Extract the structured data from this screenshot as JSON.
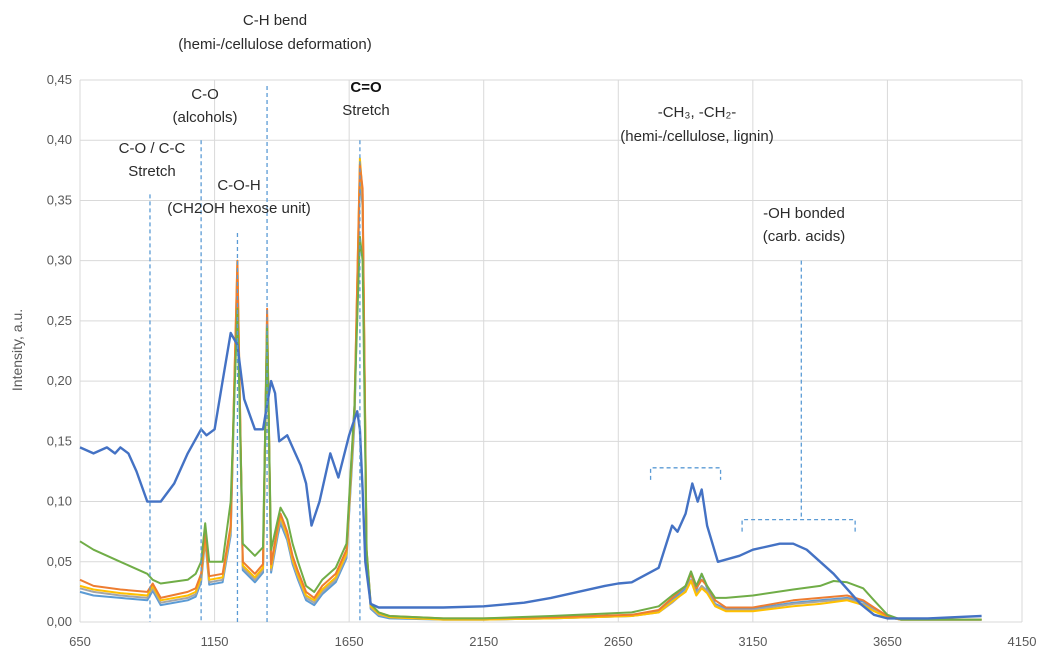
{
  "chart_data": {
    "type": "line",
    "title": "",
    "xlabel": "",
    "ylabel": "Intensity, a.u.",
    "xlim": [
      650,
      4150
    ],
    "ylim": [
      0,
      0.45
    ],
    "x_ticks": [
      650,
      1150,
      1650,
      2150,
      2650,
      3150,
      3650,
      4150
    ],
    "x_tick_labels": [
      "650",
      "1150",
      "1650",
      "2150",
      "2650",
      "3150",
      "3650",
      "4150"
    ],
    "y_ticks": [
      0,
      0.05,
      0.1,
      0.15,
      0.2,
      0.25,
      0.3,
      0.35,
      0.4,
      0.45
    ],
    "y_tick_labels": [
      "0,00",
      "0,05",
      "0,10",
      "0,15",
      "0,20",
      "0,25",
      "0,30",
      "0,35",
      "0,40",
      "0,45"
    ],
    "grid": true,
    "legend": "none",
    "series": [
      {
        "color": "#4472c4",
        "x": [
          650,
          700,
          750,
          780,
          800,
          830,
          860,
          900,
          950,
          1000,
          1050,
          1100,
          1120,
          1150,
          1180,
          1210,
          1235,
          1260,
          1300,
          1330,
          1360,
          1375,
          1390,
          1420,
          1450,
          1470,
          1490,
          1510,
          1540,
          1580,
          1610,
          1650,
          1680,
          1690,
          1700,
          1710,
          1730,
          1760,
          1800,
          1900,
          2000,
          2150,
          2300,
          2400,
          2500,
          2600,
          2650,
          2700,
          2800,
          2850,
          2870,
          2900,
          2925,
          2945,
          2960,
          2980,
          3020,
          3100,
          3150,
          3250,
          3300,
          3350,
          3450,
          3550,
          3600,
          3650,
          3700,
          3800,
          3900,
          4000
        ],
        "y": [
          0.145,
          0.14,
          0.145,
          0.14,
          0.145,
          0.14,
          0.125,
          0.1,
          0.1,
          0.115,
          0.14,
          0.16,
          0.155,
          0.16,
          0.2,
          0.24,
          0.23,
          0.185,
          0.16,
          0.16,
          0.2,
          0.19,
          0.15,
          0.155,
          0.14,
          0.13,
          0.115,
          0.08,
          0.1,
          0.14,
          0.12,
          0.155,
          0.175,
          0.16,
          0.11,
          0.05,
          0.015,
          0.012,
          0.012,
          0.012,
          0.012,
          0.013,
          0.016,
          0.02,
          0.025,
          0.03,
          0.032,
          0.033,
          0.045,
          0.08,
          0.075,
          0.09,
          0.115,
          0.1,
          0.11,
          0.08,
          0.05,
          0.055,
          0.06,
          0.065,
          0.065,
          0.06,
          0.04,
          0.015,
          0.006,
          0.003,
          0.003,
          0.003,
          0.004,
          0.005
        ]
      },
      {
        "color": "#ed7d31",
        "x": [
          650,
          700,
          800,
          900,
          920,
          950,
          1050,
          1080,
          1100,
          1115,
          1130,
          1180,
          1210,
          1235,
          1255,
          1300,
          1330,
          1345,
          1360,
          1385,
          1395,
          1420,
          1440,
          1460,
          1490,
          1520,
          1550,
          1600,
          1640,
          1670,
          1690,
          1700,
          1715,
          1730,
          1760,
          1800,
          2000,
          2150,
          2400,
          2700,
          2800,
          2850,
          2900,
          2920,
          2940,
          2960,
          2980,
          3010,
          3050,
          3150,
          3300,
          3400,
          3500,
          3560,
          3600,
          3650,
          3700,
          3800,
          4000
        ],
        "y": [
          0.035,
          0.03,
          0.027,
          0.025,
          0.032,
          0.02,
          0.025,
          0.028,
          0.04,
          0.075,
          0.038,
          0.04,
          0.08,
          0.3,
          0.05,
          0.04,
          0.048,
          0.26,
          0.048,
          0.08,
          0.09,
          0.075,
          0.055,
          0.042,
          0.025,
          0.02,
          0.03,
          0.04,
          0.06,
          0.18,
          0.38,
          0.36,
          0.06,
          0.015,
          0.008,
          0.005,
          0.003,
          0.003,
          0.004,
          0.006,
          0.01,
          0.02,
          0.03,
          0.04,
          0.028,
          0.035,
          0.03,
          0.018,
          0.012,
          0.012,
          0.018,
          0.02,
          0.022,
          0.018,
          0.012,
          0.005,
          0.002,
          0.002,
          0.002
        ]
      },
      {
        "color": "#a5a5a5",
        "x": [
          650,
          700,
          800,
          900,
          920,
          950,
          1050,
          1080,
          1100,
          1115,
          1130,
          1180,
          1210,
          1235,
          1255,
          1300,
          1330,
          1345,
          1360,
          1385,
          1395,
          1420,
          1440,
          1460,
          1490,
          1520,
          1550,
          1600,
          1640,
          1670,
          1690,
          1700,
          1715,
          1730,
          1760,
          1800,
          2000,
          2150,
          2400,
          2700,
          2800,
          2850,
          2900,
          2920,
          2940,
          2960,
          2980,
          3010,
          3050,
          3150,
          3300,
          3400,
          3500,
          3560,
          3600,
          3650,
          3700,
          3800,
          4000
        ],
        "y": [
          0.028,
          0.025,
          0.022,
          0.02,
          0.028,
          0.016,
          0.02,
          0.023,
          0.035,
          0.07,
          0.033,
          0.035,
          0.075,
          0.29,
          0.045,
          0.035,
          0.043,
          0.25,
          0.043,
          0.075,
          0.085,
          0.07,
          0.05,
          0.037,
          0.02,
          0.016,
          0.025,
          0.035,
          0.055,
          0.17,
          0.375,
          0.35,
          0.055,
          0.012,
          0.006,
          0.004,
          0.002,
          0.002,
          0.003,
          0.005,
          0.008,
          0.016,
          0.026,
          0.035,
          0.024,
          0.03,
          0.026,
          0.014,
          0.01,
          0.01,
          0.015,
          0.017,
          0.019,
          0.015,
          0.01,
          0.004,
          0.002,
          0.002,
          0.002
        ]
      },
      {
        "color": "#ffc000",
        "x": [
          650,
          700,
          800,
          900,
          920,
          950,
          1050,
          1080,
          1100,
          1115,
          1130,
          1180,
          1210,
          1235,
          1255,
          1300,
          1330,
          1345,
          1360,
          1385,
          1395,
          1420,
          1440,
          1460,
          1490,
          1520,
          1550,
          1600,
          1640,
          1670,
          1690,
          1700,
          1715,
          1730,
          1760,
          1800,
          2000,
          2150,
          2400,
          2700,
          2800,
          2850,
          2900,
          2920,
          2940,
          2960,
          2980,
          3010,
          3050,
          3150,
          3300,
          3400,
          3500,
          3560,
          3600,
          3650,
          3700,
          3800,
          4000
        ],
        "y": [
          0.03,
          0.027,
          0.024,
          0.022,
          0.03,
          0.018,
          0.022,
          0.025,
          0.037,
          0.072,
          0.035,
          0.037,
          0.078,
          0.3,
          0.047,
          0.037,
          0.045,
          0.255,
          0.045,
          0.078,
          0.088,
          0.072,
          0.052,
          0.039,
          0.022,
          0.018,
          0.027,
          0.037,
          0.057,
          0.175,
          0.385,
          0.355,
          0.058,
          0.013,
          0.007,
          0.004,
          0.002,
          0.002,
          0.003,
          0.005,
          0.008,
          0.017,
          0.025,
          0.034,
          0.022,
          0.028,
          0.024,
          0.013,
          0.009,
          0.009,
          0.013,
          0.015,
          0.018,
          0.014,
          0.009,
          0.004,
          0.002,
          0.002,
          0.002
        ]
      },
      {
        "color": "#5b9bd5",
        "x": [
          650,
          700,
          800,
          900,
          920,
          950,
          1050,
          1080,
          1100,
          1115,
          1130,
          1180,
          1210,
          1235,
          1255,
          1300,
          1330,
          1345,
          1360,
          1385,
          1395,
          1420,
          1440,
          1460,
          1490,
          1520,
          1550,
          1600,
          1640,
          1670,
          1690,
          1700,
          1715,
          1730,
          1760,
          1800,
          2000,
          2150,
          2400,
          2700,
          2800,
          2850,
          2900,
          2920,
          2940,
          2960,
          2980,
          3010,
          3050,
          3150,
          3300,
          3400,
          3500,
          3560,
          3600,
          3650,
          3700,
          3800,
          4000
        ],
        "y": [
          0.025,
          0.022,
          0.02,
          0.018,
          0.026,
          0.014,
          0.018,
          0.021,
          0.033,
          0.068,
          0.031,
          0.033,
          0.072,
          0.285,
          0.043,
          0.033,
          0.041,
          0.245,
          0.041,
          0.072,
          0.082,
          0.068,
          0.048,
          0.035,
          0.018,
          0.014,
          0.023,
          0.033,
          0.053,
          0.165,
          0.37,
          0.345,
          0.052,
          0.011,
          0.005,
          0.003,
          0.002,
          0.002,
          0.003,
          0.005,
          0.009,
          0.018,
          0.028,
          0.04,
          0.026,
          0.04,
          0.028,
          0.015,
          0.011,
          0.011,
          0.016,
          0.018,
          0.02,
          0.017,
          0.011,
          0.004,
          0.002,
          0.002,
          0.002
        ]
      },
      {
        "color": "#70ad47",
        "x": [
          650,
          700,
          800,
          900,
          920,
          950,
          1050,
          1080,
          1100,
          1115,
          1130,
          1180,
          1210,
          1235,
          1255,
          1300,
          1330,
          1345,
          1360,
          1385,
          1395,
          1420,
          1440,
          1460,
          1490,
          1520,
          1550,
          1600,
          1640,
          1670,
          1690,
          1700,
          1715,
          1730,
          1760,
          1800,
          2000,
          2150,
          2400,
          2700,
          2800,
          2850,
          2900,
          2920,
          2940,
          2960,
          2980,
          3010,
          3050,
          3150,
          3300,
          3400,
          3450,
          3500,
          3560,
          3600,
          3650,
          3700,
          3800,
          4000
        ],
        "y": [
          0.067,
          0.06,
          0.05,
          0.04,
          0.035,
          0.032,
          0.035,
          0.04,
          0.05,
          0.082,
          0.05,
          0.05,
          0.1,
          0.26,
          0.065,
          0.055,
          0.062,
          0.245,
          0.06,
          0.085,
          0.095,
          0.085,
          0.065,
          0.05,
          0.03,
          0.025,
          0.035,
          0.045,
          0.065,
          0.18,
          0.32,
          0.3,
          0.06,
          0.015,
          0.008,
          0.005,
          0.003,
          0.003,
          0.005,
          0.008,
          0.013,
          0.022,
          0.03,
          0.042,
          0.03,
          0.04,
          0.03,
          0.02,
          0.02,
          0.022,
          0.027,
          0.03,
          0.034,
          0.033,
          0.028,
          0.018,
          0.006,
          0.002,
          0.002,
          0.002
        ]
      }
    ],
    "annotations": [
      {
        "lines": [
          "C-O / C-C",
          "Stretch"
        ],
        "x": 910,
        "marker": "vline",
        "top": 0.355,
        "bold": false
      },
      {
        "lines": [
          "C-O",
          "(alcohols)"
        ],
        "x": 1100,
        "marker": "vline",
        "top": 0.4,
        "bold": false
      },
      {
        "lines": [
          "C-O-H",
          "(CH2OH hexose unit)"
        ],
        "x": 1235,
        "marker": "vline",
        "top": 0.323,
        "bold": false
      },
      {
        "lines": [
          "C-H bend",
          "(hemi-/cellulose deformation)"
        ],
        "x": 1345,
        "marker": "vline",
        "top": 0.445,
        "bold": false
      },
      {
        "lines": [
          "C=O"
        ],
        "x": 1690,
        "marker": "vline",
        "top": 0.4,
        "bold": true
      },
      {
        "lines": [
          "Stretch"
        ],
        "x": 1690,
        "marker": "none",
        "top": 0,
        "bold": false
      },
      {
        "lines": [
          "-CH₃, -CH₂-",
          "(hemi-/cellulose, lignin)"
        ],
        "x": 2920,
        "marker": "bracket",
        "x1": 2770,
        "x2": 3030,
        "top": 0.128,
        "bold": false
      },
      {
        "lines": [
          "-OH bonded",
          "(carb. acids)"
        ],
        "x": 3330,
        "marker": "bracket",
        "x1": 3110,
        "x2": 3530,
        "top": 0.3,
        "bold": false
      }
    ]
  }
}
